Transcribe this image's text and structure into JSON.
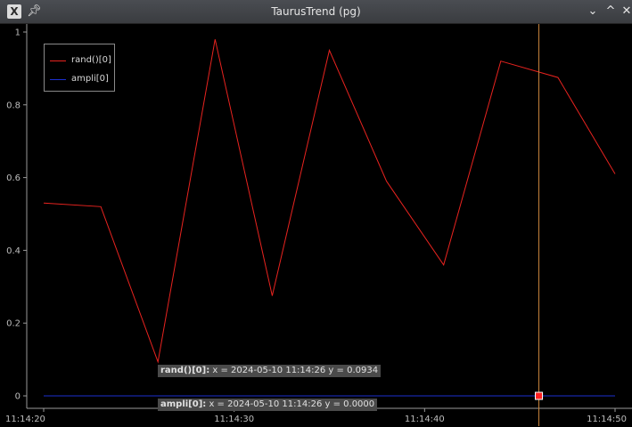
{
  "window": {
    "title": "TaurusTrend (pg)",
    "app_icon": "X",
    "app_icon_name": "taurus-x-icon",
    "pin_icon_name": "pin-icon",
    "controls": {
      "minimize": "⌄",
      "maximize": "^",
      "close": "✕"
    }
  },
  "colors": {
    "background": "#000000",
    "rand_series": "#e8231f",
    "ampli_series": "#1c2fd0",
    "crosshair": "#c8843c",
    "marker": "#ff2020"
  },
  "legend": {
    "items": [
      {
        "label": "rand()[0]",
        "color": "#e8231f"
      },
      {
        "label": "ampli[0]",
        "color": "#1c2fd0"
      }
    ]
  },
  "crosshair": {
    "x_seconds": 26,
    "labels": [
      {
        "series": "rand()[0]:",
        "text": " x = 2024-05-10 11:14:26 y = 0.0934"
      },
      {
        "series": "ampli[0]:",
        "text": " x = 2024-05-10 11:14:26 y = 0.0000"
      }
    ]
  },
  "chart_data": {
    "type": "line",
    "x_unit": "time (11:14:xx)",
    "xlim": [
      "11:14:19.5",
      "11:14:50.2"
    ],
    "ylim": [
      -0.04,
      1.02
    ],
    "x_ticks": [
      "11:14:20",
      "11:14:30",
      "11:14:40",
      "11:14:50"
    ],
    "y_ticks": [
      "0",
      "0.2",
      "0.4",
      "0.6",
      "0.8",
      "1"
    ],
    "grid": false,
    "legend_position": "top-left",
    "series": [
      {
        "name": "rand()[0]",
        "color": "#e8231f",
        "x": [
          "11:14:20",
          "11:14:23",
          "11:14:26",
          "11:14:29",
          "11:14:32",
          "11:14:35",
          "11:14:38",
          "11:14:41",
          "11:14:44",
          "11:14:47",
          "11:14:50"
        ],
        "y": [
          0.53,
          0.52,
          0.0934,
          0.98,
          0.275,
          0.95,
          0.59,
          0.36,
          0.92,
          0.875,
          0.61
        ]
      },
      {
        "name": "ampli[0]",
        "color": "#1c2fd0",
        "x": [
          "11:14:20",
          "11:14:23",
          "11:14:26",
          "11:14:29",
          "11:14:32",
          "11:14:35",
          "11:14:38",
          "11:14:41",
          "11:14:44",
          "11:14:47",
          "11:14:50"
        ],
        "y": [
          0,
          0,
          0,
          0,
          0,
          0,
          0,
          0,
          0,
          0,
          0
        ]
      }
    ]
  }
}
